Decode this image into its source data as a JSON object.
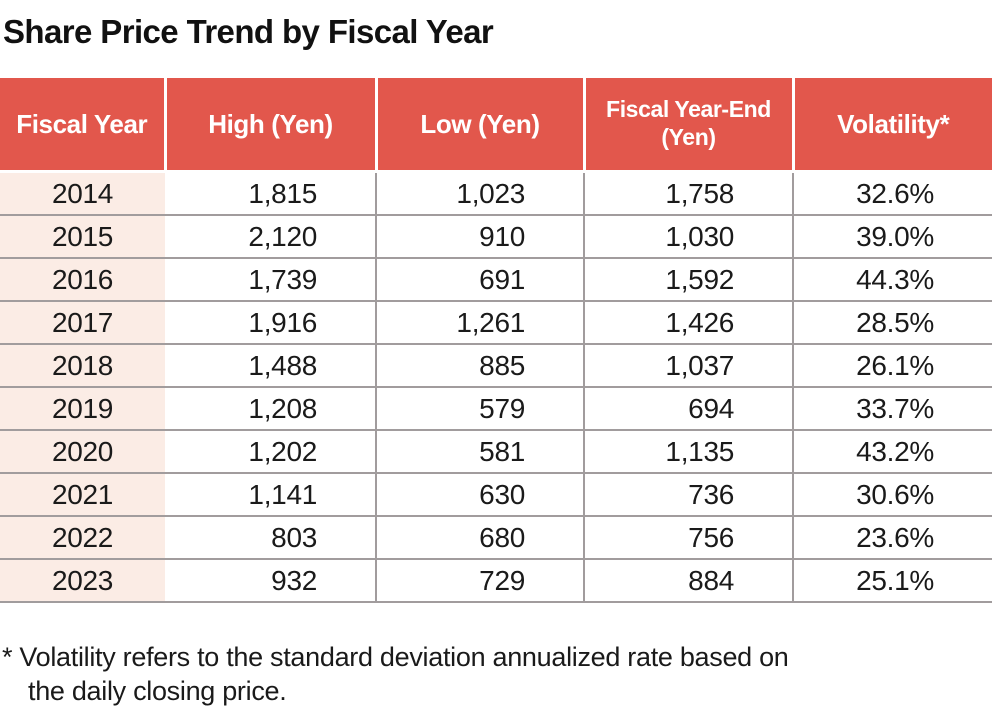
{
  "title": "Share Price Trend by Fiscal Year",
  "table": {
    "headers": [
      "Fiscal Year",
      "High (Yen)",
      "Low (Yen)",
      "Fiscal Year-End (Yen)",
      "Volatility*"
    ],
    "rows": [
      {
        "year": "2014",
        "high": "1,815",
        "low": "1,023",
        "year_end": "1,758",
        "volatility": "32.6%"
      },
      {
        "year": "2015",
        "high": "2,120",
        "low": "910",
        "year_end": "1,030",
        "volatility": "39.0%"
      },
      {
        "year": "2016",
        "high": "1,739",
        "low": "691",
        "year_end": "1,592",
        "volatility": "44.3%"
      },
      {
        "year": "2017",
        "high": "1,916",
        "low": "1,261",
        "year_end": "1,426",
        "volatility": "28.5%"
      },
      {
        "year": "2018",
        "high": "1,488",
        "low": "885",
        "year_end": "1,037",
        "volatility": "26.1%"
      },
      {
        "year": "2019",
        "high": "1,208",
        "low": "579",
        "year_end": "694",
        "volatility": "33.7%"
      },
      {
        "year": "2020",
        "high": "1,202",
        "low": "581",
        "year_end": "1,135",
        "volatility": "43.2%"
      },
      {
        "year": "2021",
        "high": "1,141",
        "low": "630",
        "year_end": "736",
        "volatility": "30.6%"
      },
      {
        "year": "2022",
        "high": "803",
        "low": "680",
        "year_end": "756",
        "volatility": "23.6%"
      },
      {
        "year": "2023",
        "high": "932",
        "low": "729",
        "year_end": "884",
        "volatility": "25.1%"
      }
    ]
  },
  "footnote": {
    "lines": [
      "* Volatility refers to the standard deviation annualized rate based on",
      "the daily closing price."
    ]
  },
  "colors": {
    "header_bg": "#e2574c",
    "header_text": "#ffffff",
    "year_column_bg": "#fbece5",
    "row_border": "#a19c9d",
    "text": "#1a1a1a",
    "background": "#ffffff"
  },
  "chart_data": {
    "type": "table",
    "title": "Share Price Trend by Fiscal Year",
    "columns": [
      "Fiscal Year",
      "High (Yen)",
      "Low (Yen)",
      "Fiscal Year-End (Yen)",
      "Volatility*"
    ],
    "rows": [
      [
        2014,
        1815,
        1023,
        1758,
        32.6
      ],
      [
        2015,
        2120,
        910,
        1030,
        39.0
      ],
      [
        2016,
        1739,
        691,
        1592,
        44.3
      ],
      [
        2017,
        1916,
        1261,
        1426,
        28.5
      ],
      [
        2018,
        1488,
        885,
        1037,
        26.1
      ],
      [
        2019,
        1208,
        579,
        694,
        33.7
      ],
      [
        2020,
        1202,
        581,
        1135,
        43.2
      ],
      [
        2021,
        1141,
        630,
        736,
        30.6
      ],
      [
        2022,
        803,
        680,
        756,
        23.6
      ],
      [
        2023,
        932,
        729,
        884,
        25.1
      ]
    ],
    "volatility_unit": "%",
    "footnote": "* Volatility refers to the standard deviation annualized rate based on the daily closing price."
  }
}
